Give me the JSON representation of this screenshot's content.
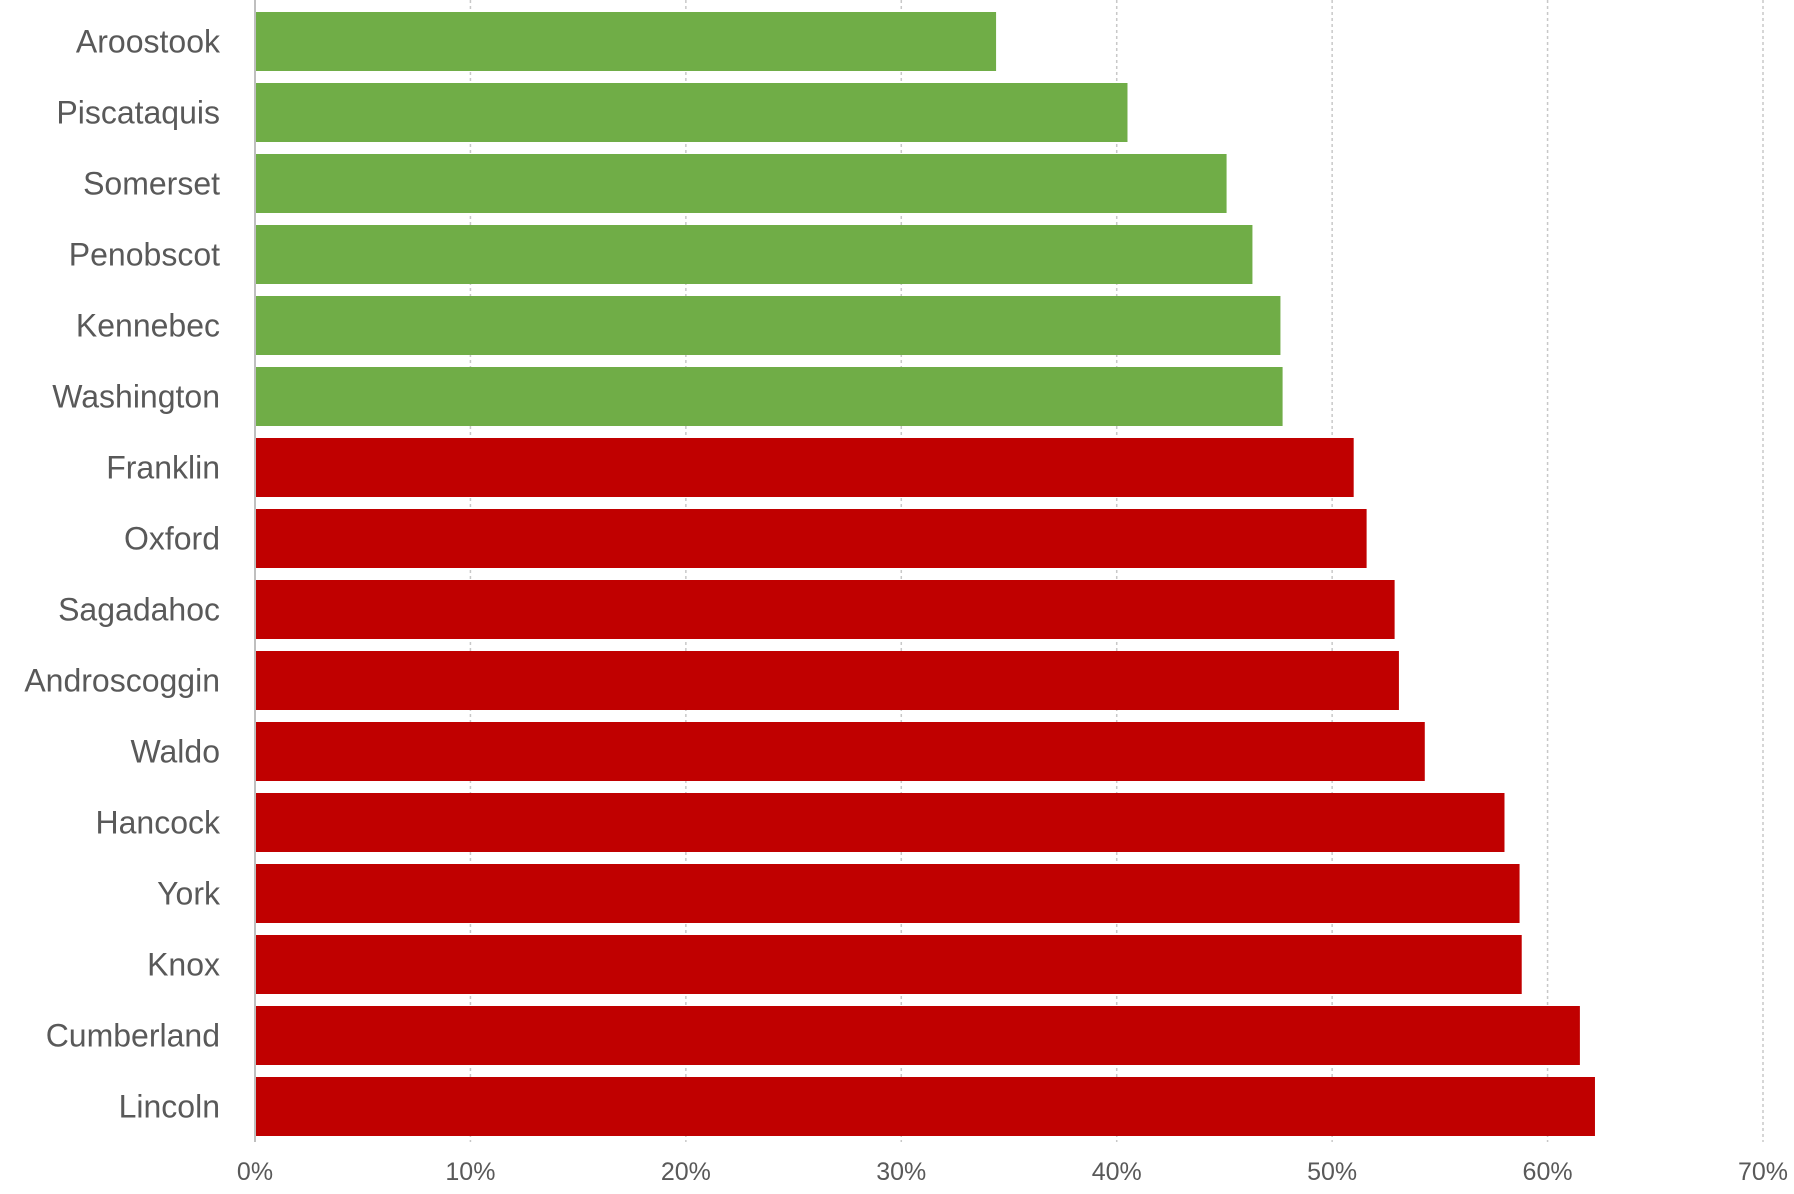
{
  "chart_data": {
    "type": "bar",
    "orientation": "horizontal",
    "title": "",
    "xlabel": "",
    "ylabel": "",
    "xlim": [
      0,
      0.7
    ],
    "grid": true,
    "legend": "none",
    "tick_values": [
      0,
      0.1,
      0.2,
      0.3,
      0.4,
      0.5,
      0.6,
      0.7
    ],
    "tick_labels": [
      "0%",
      "10%",
      "20%",
      "30%",
      "40%",
      "50%",
      "60%",
      "70%"
    ],
    "categories": [
      "Aroostook",
      "Piscataquis",
      "Somerset",
      "Penobscot",
      "Kennebec",
      "Washington",
      "Franklin",
      "Oxford",
      "Sagadahoc",
      "Androscoggin",
      "Waldo",
      "Hancock",
      "York",
      "Knox",
      "Cumberland",
      "Lincoln"
    ],
    "values": [
      0.344,
      0.405,
      0.451,
      0.463,
      0.476,
      0.477,
      0.51,
      0.516,
      0.529,
      0.531,
      0.543,
      0.58,
      0.587,
      0.588,
      0.615,
      0.622
    ],
    "bar_colors": [
      "#70ad47",
      "#70ad47",
      "#70ad47",
      "#70ad47",
      "#70ad47",
      "#70ad47",
      "#c00000",
      "#c00000",
      "#c00000",
      "#c00000",
      "#c00000",
      "#c00000",
      "#c00000",
      "#c00000",
      "#c00000",
      "#c00000"
    ]
  }
}
